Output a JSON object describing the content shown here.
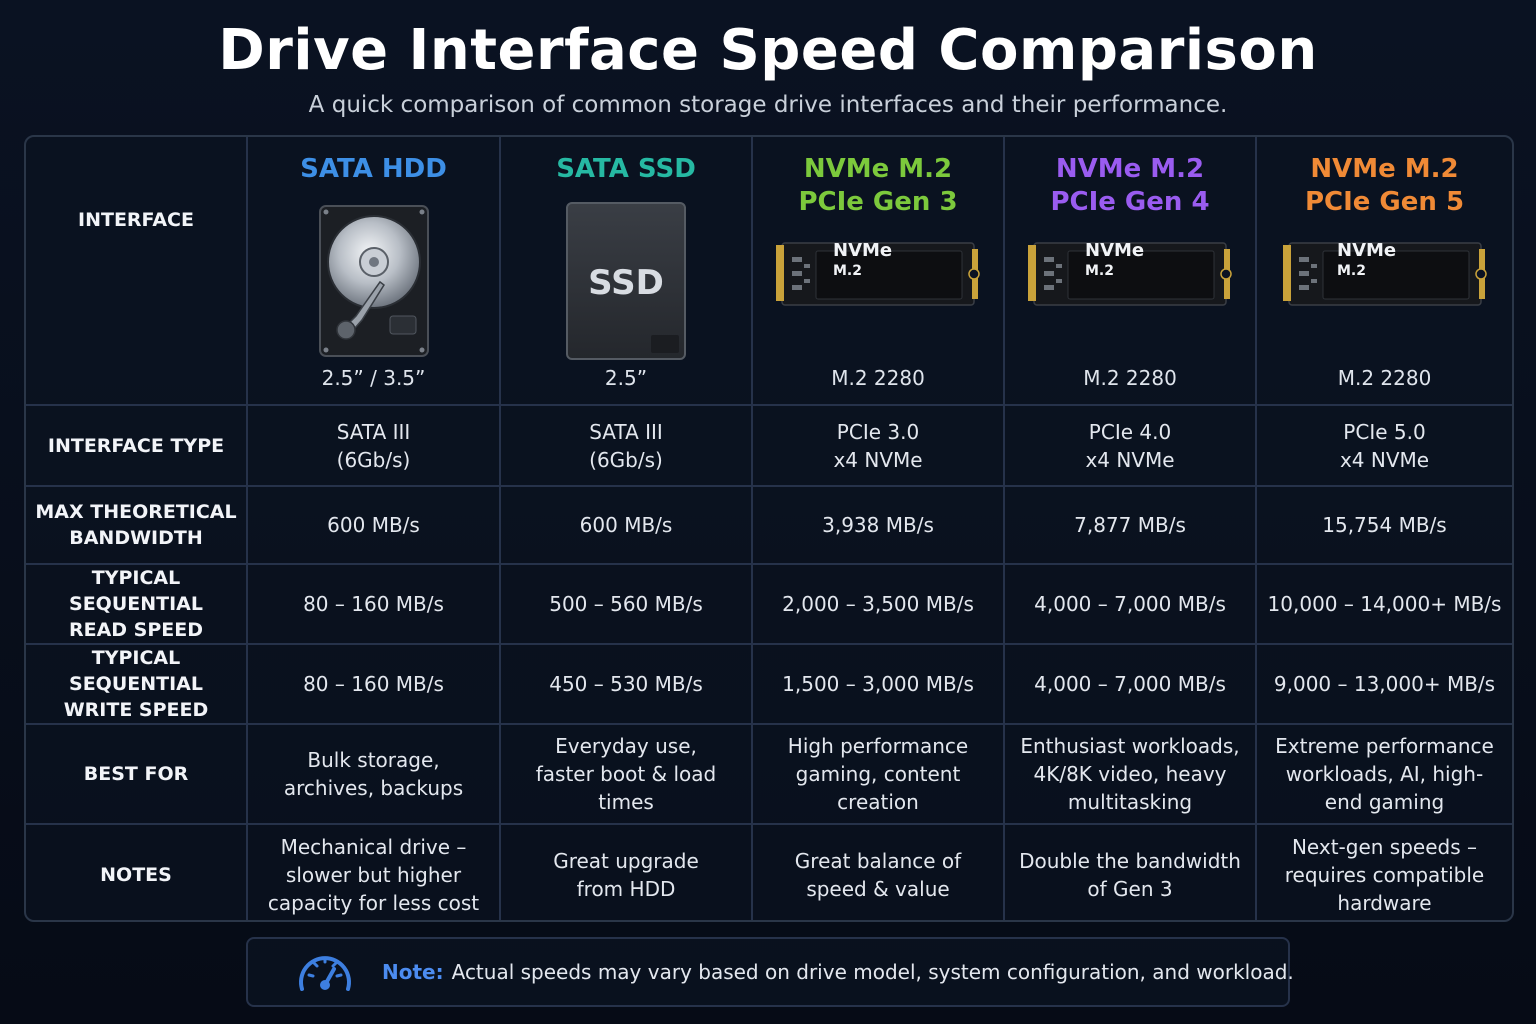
{
  "title": "Drive Interface Speed Comparison",
  "subtitle": "A quick comparison of common storage drive interfaces and their performance.",
  "header_label": "INTERFACE",
  "columns": [
    {
      "name_line1": "SATA HDD",
      "name_line2": "",
      "color": "#3d8fe6",
      "form_factor": "2.5” / 3.5”",
      "image": "hdd-image",
      "label_top": "",
      "label_bottom": ""
    },
    {
      "name_line1": "SATA SSD",
      "name_line2": "",
      "color": "#26b9a3",
      "form_factor": "2.5”",
      "image": "ssd-image",
      "label_top": "SSD",
      "label_bottom": ""
    },
    {
      "name_line1": "NVMe M.2",
      "name_line2": "PCIe Gen 3",
      "color": "#7cc93c",
      "form_factor": "M.2 2280",
      "image": "nvme-image",
      "label_top": "NVMe",
      "label_bottom": "M.2"
    },
    {
      "name_line1": "NVMe M.2",
      "name_line2": "PCIe Gen 4",
      "color": "#9a5cf0",
      "form_factor": "M.2 2280",
      "image": "nvme-image",
      "label_top": "NVMe",
      "label_bottom": "M.2"
    },
    {
      "name_line1": "NVMe M.2",
      "name_line2": "PCIe Gen 5",
      "color": "#f08a36",
      "form_factor": "M.2 2280",
      "image": "nvme-image",
      "label_top": "NVMe",
      "label_bottom": "M.2"
    }
  ],
  "rows": [
    {
      "label_line1": "INTERFACE TYPE",
      "label_line2": "",
      "cells": [
        [
          "SATA III",
          "(6Gb/s)",
          ""
        ],
        [
          "SATA III",
          "(6Gb/s)",
          ""
        ],
        [
          "PCIe 3.0",
          "x4 NVMe",
          ""
        ],
        [
          "PCIe 4.0",
          "x4 NVMe",
          ""
        ],
        [
          "PCIe 5.0",
          "x4 NVMe",
          ""
        ]
      ]
    },
    {
      "label_line1": "MAX THEORETICAL",
      "label_line2": "BANDWIDTH",
      "cells": [
        [
          "600 MB/s",
          "",
          ""
        ],
        [
          "600 MB/s",
          "",
          ""
        ],
        [
          "3,938 MB/s",
          "",
          ""
        ],
        [
          "7,877 MB/s",
          "",
          ""
        ],
        [
          "15,754 MB/s",
          "",
          ""
        ]
      ]
    },
    {
      "label_line1": "TYPICAL SEQUENTIAL",
      "label_line2": "READ SPEED",
      "cells": [
        [
          "80 – 160 MB/s",
          "",
          ""
        ],
        [
          "500 – 560 MB/s",
          "",
          ""
        ],
        [
          "2,000 – 3,500 MB/s",
          "",
          ""
        ],
        [
          "4,000 – 7,000 MB/s",
          "",
          ""
        ],
        [
          "10,000 – 14,000+ MB/s",
          "",
          ""
        ]
      ]
    },
    {
      "label_line1": "TYPICAL SEQUENTIAL",
      "label_line2": "WRITE SPEED",
      "cells": [
        [
          "80 – 160 MB/s",
          "",
          ""
        ],
        [
          "450 – 530 MB/s",
          "",
          ""
        ],
        [
          "1,500 – 3,000 MB/s",
          "",
          ""
        ],
        [
          "4,000 – 7,000 MB/s",
          "",
          ""
        ],
        [
          "9,000 – 13,000+ MB/s",
          "",
          ""
        ]
      ]
    },
    {
      "label_line1": "BEST FOR",
      "label_line2": "",
      "cells": [
        [
          "Bulk storage,",
          "archives, backups",
          ""
        ],
        [
          "Everyday use,",
          "faster boot & load",
          "times"
        ],
        [
          "High performance",
          "gaming, content",
          "creation"
        ],
        [
          "Enthusiast workloads,",
          "4K/8K video, heavy",
          "multitasking"
        ],
        [
          "Extreme performance",
          "workloads, AI, high-",
          "end gaming"
        ]
      ]
    },
    {
      "label_line1": "NOTES",
      "label_line2": "",
      "cells": [
        [
          "Mechanical drive –",
          "slower but higher",
          "capacity for less cost"
        ],
        [
          "Great upgrade",
          "from HDD",
          ""
        ],
        [
          "Great balance of",
          "speed & value",
          ""
        ],
        [
          "Double the bandwidth",
          "of Gen 3",
          ""
        ],
        [
          "Next-gen speeds –",
          "requires compatible",
          "hardware"
        ]
      ]
    }
  ],
  "note": {
    "label": "Note:",
    "text": "Actual speeds may vary based on drive model, system configuration, and workload.",
    "icon": "speedometer-icon",
    "accent": "#4c8cf0"
  }
}
